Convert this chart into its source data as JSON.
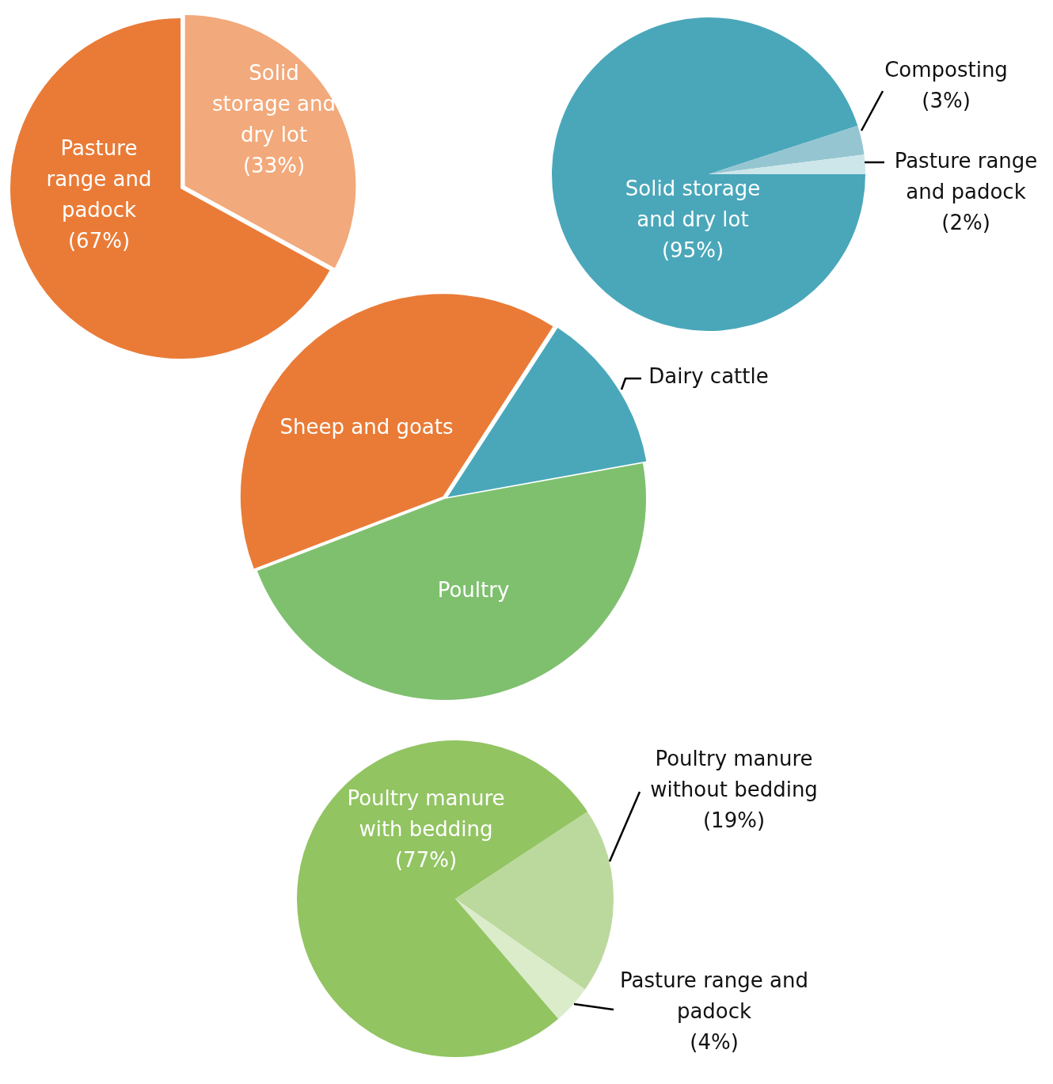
{
  "chart_data": [
    {
      "type": "pie",
      "categories": [
        "Solid storage and dry lot",
        "Pasture range and padock"
      ],
      "values": [
        33,
        67
      ],
      "value_labels": [
        "(33%)",
        "(67%)"
      ],
      "colors": [
        "#f2a97b",
        "#e97b37"
      ]
    },
    {
      "type": "pie",
      "categories": [
        "Solid storage and dry lot",
        "Composting",
        "Pasture range and padock"
      ],
      "values": [
        95,
        3,
        2
      ],
      "value_labels": [
        "(95%)",
        "(3%)",
        "(2%)"
      ],
      "colors": [
        "#4aa7ba",
        "#94c5d1",
        "#cde6ea"
      ]
    },
    {
      "type": "pie",
      "categories": [
        "Dairy cattle",
        "Poultry",
        "Sheep and goats"
      ],
      "values": [
        13,
        47,
        40
      ],
      "colors": [
        "#4aa7ba",
        "#7fc06f",
        "#e97b37"
      ]
    },
    {
      "type": "pie",
      "categories": [
        "Poultry manure without bedding",
        "Pasture range and padock",
        "Poultry manure with bedding"
      ],
      "values": [
        19,
        4,
        77
      ],
      "value_labels": [
        "(19%)",
        "(4%)",
        "(77%)"
      ],
      "colors": [
        "#bcd99d",
        "#dbeccb",
        "#92c462"
      ]
    }
  ]
}
